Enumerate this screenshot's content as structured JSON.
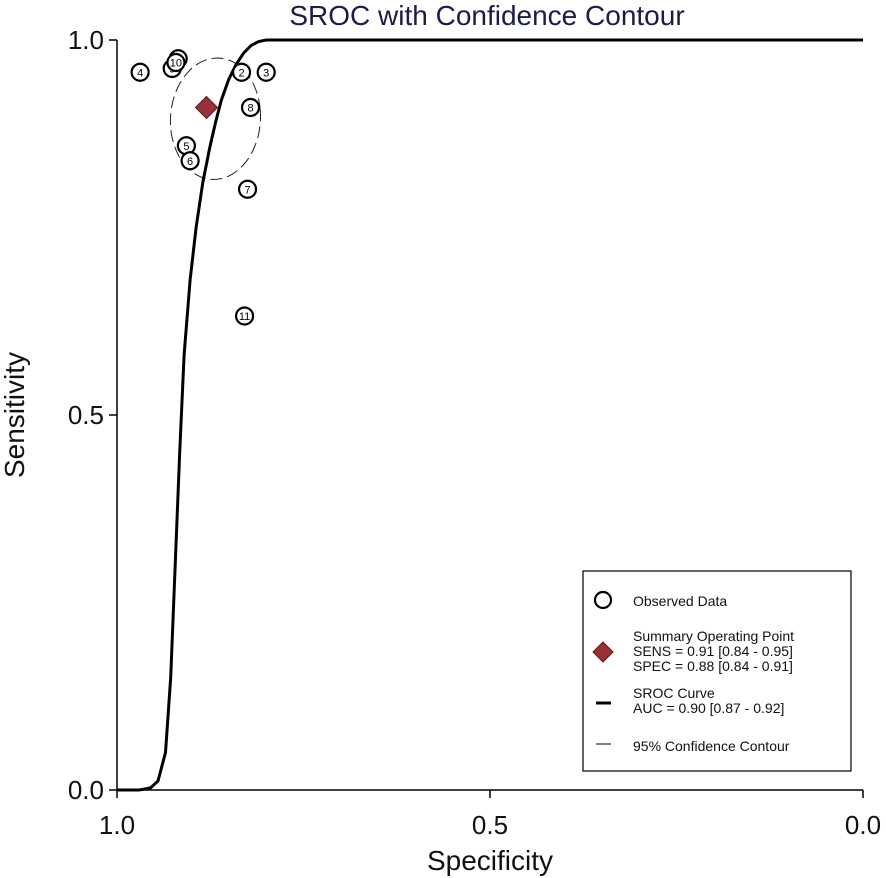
{
  "chart_data": {
    "type": "scatter",
    "title": "SROC with Confidence Contour",
    "xlabel": "Specificity",
    "ylabel": "Sensitivity",
    "xlim": [
      1.0,
      0.0
    ],
    "ylim": [
      0.0,
      1.0
    ],
    "x_reversed": true,
    "grid": false,
    "x_ticks": [
      {
        "value": 1.0,
        "label": "1.0"
      },
      {
        "value": 0.5,
        "label": "0.5"
      },
      {
        "value": 0.0,
        "label": "0.0"
      }
    ],
    "y_ticks": [
      {
        "value": 0.0,
        "label": "0.0"
      },
      {
        "value": 0.5,
        "label": "0.5"
      },
      {
        "value": 1.0,
        "label": "1.0"
      }
    ],
    "observed": [
      {
        "label": "1",
        "spec": 0.918,
        "sens": 0.975
      },
      {
        "label": "2",
        "spec": 0.833,
        "sens": 0.957
      },
      {
        "label": "3",
        "spec": 0.8,
        "sens": 0.957
      },
      {
        "label": "4",
        "spec": 0.969,
        "sens": 0.957
      },
      {
        "label": "5",
        "spec": 0.907,
        "sens": 0.859
      },
      {
        "label": "6",
        "spec": 0.902,
        "sens": 0.839
      },
      {
        "label": "7",
        "spec": 0.825,
        "sens": 0.801
      },
      {
        "label": "8",
        "spec": 0.821,
        "sens": 0.91
      },
      {
        "label": "9",
        "spec": 0.926,
        "sens": 0.962
      },
      {
        "label": "10",
        "spec": 0.921,
        "sens": 0.97
      },
      {
        "label": "11",
        "spec": 0.829,
        "sens": 0.632
      }
    ],
    "summary_point": {
      "spec": 0.88,
      "sens": 0.91,
      "color": "#9b3036"
    },
    "sroc_curve": [
      [
        1.0,
        0.0
      ],
      [
        0.97,
        0.0
      ],
      [
        0.955,
        0.003
      ],
      [
        0.945,
        0.012
      ],
      [
        0.935,
        0.05
      ],
      [
        0.928,
        0.15
      ],
      [
        0.922,
        0.3
      ],
      [
        0.916,
        0.45
      ],
      [
        0.91,
        0.58
      ],
      [
        0.902,
        0.68
      ],
      [
        0.894,
        0.75
      ],
      [
        0.885,
        0.81
      ],
      [
        0.876,
        0.855
      ],
      [
        0.868,
        0.89
      ],
      [
        0.86,
        0.92
      ],
      [
        0.85,
        0.948
      ],
      [
        0.84,
        0.968
      ],
      [
        0.83,
        0.983
      ],
      [
        0.82,
        0.993
      ],
      [
        0.81,
        0.998
      ],
      [
        0.8,
        1.0
      ],
      [
        0.0,
        1.0
      ]
    ],
    "confidence_contour": {
      "center_spec": 0.868,
      "center_sens": 0.895,
      "half_width_spec": 0.06,
      "half_height_sens": 0.08,
      "tilt": 0.35
    },
    "legend": {
      "position": "bottom-right",
      "items": [
        {
          "kind": "circle",
          "lines": [
            "Observed Data"
          ]
        },
        {
          "kind": "diamond",
          "lines": [
            "Summary Operating  Point",
            "SENS = 0.91 [0.84 - 0.95]",
            "SPEC = 0.88 [0.84 - 0.91]"
          ]
        },
        {
          "kind": "thick-line",
          "lines": [
            "SROC Curve",
            "AUC = 0.90 [0.87 - 0.92]"
          ]
        },
        {
          "kind": "thin-line",
          "lines": [
            "95% Confidence Contour"
          ]
        }
      ]
    }
  }
}
